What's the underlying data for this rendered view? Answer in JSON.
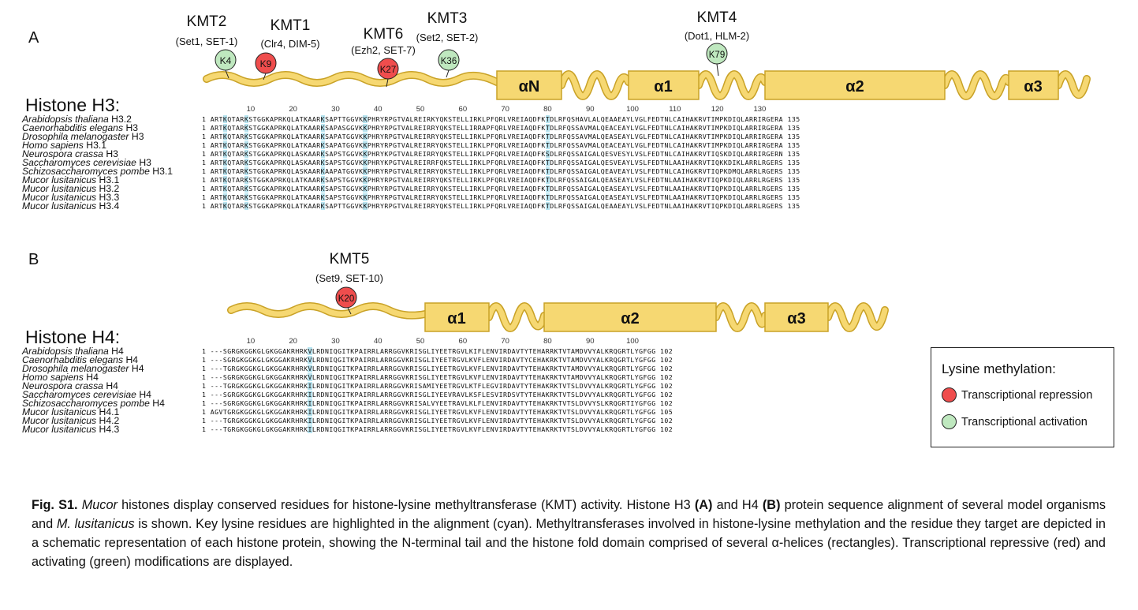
{
  "panelA": {
    "letter": "A",
    "title": "Histone H3:",
    "kmts": [
      {
        "name": "KMT2",
        "alias": "(Set1, SET-1)",
        "residue": "K4",
        "type": "activation"
      },
      {
        "name": "KMT1",
        "alias": "(Clr4, DIM-5)",
        "residue": "K9",
        "type": "repression"
      },
      {
        "name": "KMT6",
        "alias": "(Ezh2, SET-7)",
        "residue": "K27",
        "type": "repression"
      },
      {
        "name": "KMT3",
        "alias": "(Set2, SET-2)",
        "residue": "K36",
        "type": "activation"
      },
      {
        "name": "KMT4",
        "alias": "(Dot1, HLM-2)",
        "residue": "K79",
        "type": "activation"
      }
    ],
    "helices": [
      "αN",
      "α1",
      "α2",
      "α3"
    ],
    "positions": [
      "10",
      "20",
      "30",
      "40",
      "50",
      "60",
      "70",
      "80",
      "90",
      "100",
      "110",
      "120",
      "130"
    ],
    "rows": [
      {
        "genus": "Arabidopsis thaliana",
        "suffix": "H3.2",
        "seq": "1 ARTKQTARKSTGGKAPRKQLATKAARKSAPTTGGVKKPHRYRPGTVALREIRKYQKSTELLIRKLPFQRLVREIAQDFKTDLRFQSHAVLALQEAAEAYLVGLFEDTNLCAIHAKRVTIMPKDIQLARRIRGERA 135"
      },
      {
        "genus": "Caenorhabditis elegans",
        "suffix": "H3",
        "seq": "1 ARTKQTARKSTGGKAPRKQLATKAARKSAPASGGVKKPHRYRPGTVALREIRRYQKSTELLIRRAPFQRLVREIAQDFKTDLRFQSSAVMALQEACEAYLVGLFEDTNLCAIHAKRVTIMPKDIQLARRIRGERA 135"
      },
      {
        "genus": "Drosophila melanogaster",
        "suffix": "H3",
        "seq": "1 ARTKQTARKSTGGKAPRKQLATKAARKSAPATGGVKKPHRYRPGTVALREIRRYQKSTELLIRKLPFQRLVREIAQDFKTDLRFQSSAVMALQEASEAYLVGLFEDTNLCAIHAKRVTIMPKDIQLARRIRGERA 135"
      },
      {
        "genus": "Homo sapiens",
        "suffix": "H3.1",
        "seq": "1 ARTKQTARKSTGGKAPRKQLATKAARKSAPATGGVKKPHRYRPGTVALREIRRYQKSTELLIRKLPFQRLVREIAQDFKTDLRFQSSAVMALQEACEAYLVGLFEDTNLCAIHAKRVTIMPKDIQLARRIRGERA 135"
      },
      {
        "genus": "Neurospora crassa",
        "suffix": "H3",
        "seq": "1 ARTKQTARKSTGGKAPRKQLASKAARKSAPSTGGVKKPHRYKPGTVALREIRRYQKSTELLIRKLPFQRLVREIAQDFKSDLRFQSSAIGALQESVESYLVSLFEDTNLCAIHAKRVTIQSKDIQLARRIRGERN 135"
      },
      {
        "genus": "Saccharomyces cerevisiae",
        "suffix": "H3",
        "seq": "1 ARTKQTARKSTGGKAPRKQLASKAARKSAPSTGGVKKPHRYKPGTVALREIRRFQKSTELLIRKLPFQRLVREIAQDFKTDLRFQSSAIGALQESVEAYLVSLFEDTNLAAIHAKRVTIQKKDIKLARRLRGERS 135"
      },
      {
        "genus": "Schizosaccharomyces pombe",
        "suffix": "H3.1",
        "seq": "1 ARTKQTARKSTGGKAPRKQLASKAARKAAPATGGVKKPHRYRPGTVALREIRRYQKSTELLIRKLPFQRLVREIAQDFKTDLRFQSSAIGALQEAVEAYLVSLFEDTNLCAIHGKRVTIQPKDMQLARRLRGERS 135"
      },
      {
        "genus": "Mucor lusitanicus",
        "suffix": "H3.1",
        "seq": "1 ARTKQTARKSTGGKAPRKQLATKAARKSAPSTGGVKKPHRYRPGTVALREIRRYQKSTELLIRKLPFQRLVREIAQDFKTDLRFQSSAIGALQEASEAYLVSLFEDTNLAAIHAKRVTIQPKDIQLARRLRGERS 135"
      },
      {
        "genus": "Mucor lusitanicus",
        "suffix": "H3.2",
        "seq": "1 ARTKQTARKSTGGKAPRKQLATKAARKSAPSTGGVKKPHRYRPGTVALREIRRYQKSTELLIRKLPFQRLVREIAQDFKTDLRFQSSAIGALQEASEAYLVSLFEDTNLAAIHAKRVTIQPKDIQLARRLRGERS 135"
      },
      {
        "genus": "Mucor lusitanicus",
        "suffix": "H3.3",
        "seq": "1 ARTKQTARKSTGGKAPRKQLATKAARKSAPSTGGVKKPHRYRPGTVALREIRRYQKSTELLIRKLPFQRLVREIAQDFKTDLRFQSSAIGALQEASEAYLVSLFEDTNLAAIHAKRVTIQPKDIQLARRLRGERS 135"
      },
      {
        "genus": "Mucor lusitanicus",
        "suffix": "H3.4",
        "seq": "1 ARTKQTARKSTGGKAPRKQLATKAARKSAPTTGGVKKPHRYRPGTVALREIRRYQKSTELLIRKLPFQRLVREIAQDFKTDLRFQSSAIGALQEAAEAYLVSLFEDTNLAAIHAKRVTIQPKDIQLARRLRGERS 135"
      }
    ]
  },
  "panelB": {
    "letter": "B",
    "title": "Histone H4:",
    "kmts": [
      {
        "name": "KMT5",
        "alias": "(Set9, SET-10)",
        "residue": "K20",
        "type": "repression"
      }
    ],
    "helices": [
      "α1",
      "α2",
      "α3"
    ],
    "positions": [
      "10",
      "20",
      "30",
      "40",
      "50",
      "60",
      "70",
      "80",
      "90",
      "100"
    ],
    "rows": [
      {
        "genus": "Arabidopsis thaliana",
        "suffix": "H4",
        "seq": "1 ---SGRGKGGKGLGKGGAKRHRKVLRDNIQGITKPAIRRLARRGGVKRISGLIYEETRGVLKIFLENVIRDAVTYTEHARRKTVTAMDVVYALKRQGRTLYGFGG 102"
      },
      {
        "genus": "Caenorhabditis elegans",
        "suffix": "H4",
        "seq": "1 ---SGRGKGGKGLGKGGAKRHRKVLRDNIQGITKPAIRRLARRGGVKRISGLIYEETRGVLKVFLENVIRDAVTYCEHAKRKTVTAMDVVYALKRQGRTLYGFGG 102"
      },
      {
        "genus": "Drosophila melanogaster",
        "suffix": "H4",
        "seq": "1 ---TGRGKGGKGLGKGGAKRHRKVLRDNIQGITKPAIRRLARRGGVKRISGLIYEETRGVLKVFLENVIRDAVTYTEHAKRKTVTAMDVVYALKRQGRTLYGFGG 102"
      },
      {
        "genus": "Homo sapiens",
        "suffix": "H4",
        "seq": "1 ---SGRGKGGKGLGKGGAKRHRKVLRDNIQGITKPAIRRLARRGGVKRISGLIYEETRGVLKVFLENVIRDAVTYTEHAKRKTVTAMDVVYALKRQGRTLYGFGG 102"
      },
      {
        "genus": "Neurospora crassa",
        "suffix": "H4",
        "seq": "1 ---TGRGKGGKGLGKGGAKRHRKILRDNIQGITKPAIRRLARRGGVKRISAMIYEETRGVLKTFLEGVIRDAVTYTEHAKRKTVTSLDVVYALKRQGRTLYGFGG 102"
      },
      {
        "genus": "Saccharomyces cerevisiae",
        "suffix": "H4",
        "seq": "1 ---SGRGKGGKGLGKGGAKRHRKILRDNIQGITKPAIRRLARRGGVKRISGLIYEEVRAVLKSFLESVIRDSVTYTEHAKRKTVTSLDVVYALKRQGRTLYGFGG 102"
      },
      {
        "genus": "Schizosaccharomyces pombe",
        "suffix": "H4",
        "seq": "1 ---SGRGKGGKGLGKGGAKRHRKILRDNIQGITKPAIRRLARRGGVKRISALVYEETRAVLKLFLENVIRDAVTYTEHAKRKTVTSLDVVYSLKRQGRTIYGFGG 102"
      },
      {
        "genus": "Mucor lusitanicus",
        "suffix": "H4.1",
        "seq": "1 AGVTGRGKGGKGLGKGGAKRHRKILRDNIQGITKPAIRRLARRGGVKRISGLIYEETRGVLKVFLENVIRDAVTYTEHAKRKTVTSLDVVYALKRQGRTLYGFGG 105"
      },
      {
        "genus": "Mucor lusitanicus",
        "suffix": "H4.2",
        "seq": "1 ---TGRGKGGKGLGKGGAKRHRKILRDNIQGITKPAIRRLARRGGVKRISGLIYEETRGVLKVFLENVIRDAVTYTEHAKRKTVTSLDVVYALKRQGRTLYGFGG 102"
      },
      {
        "genus": "Mucor lusitanicus",
        "suffix": "H4.3",
        "seq": "1 ---TGRGKGGKGLGKGGAKRHRKILRDNIQGITKPAIRRLARRGGVKRISGLIYEETRGVLKVFLENVIRDAVTYTEHAKRKTVTSLDVVYALKRQGRTLYGFGG 102"
      }
    ]
  },
  "legend": {
    "title": "Lysine methylation:",
    "repression": "Transcriptional repression",
    "activation": "Transcriptional activation"
  },
  "colors": {
    "helix_fill": "#f6d872",
    "helix_stroke": "#c9a227",
    "repression_fill": "#ef4d4d",
    "activation_fill": "#bfe8bf",
    "highlight": "#b8e4f0"
  },
  "caption": {
    "label": "Fig. S1.",
    "genus": "Mucor",
    "t1": " histones display conserved residues for histone-lysine methyltransferase (KMT) activity. Histone H3 ",
    "a": "(A)",
    "t2": " and H4 ",
    "b": "(B)",
    "t3": " protein sequence alignment of several model organisms and ",
    "species": "M. lusitanicus",
    "t4": " is shown. Key lysine residues are highlighted in the alignment (cyan). Methyltransferases involved in histone-lysine methylation and the residue they target are depicted in a schematic representation of each histone protein, showing the N-terminal tail and the histone fold domain comprised of several α-helices (rectangles). Transcriptional repressive (red) and activating (green) modifications are displayed."
  }
}
